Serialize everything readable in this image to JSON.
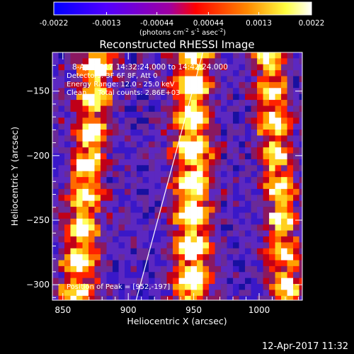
{
  "colorbar": {
    "ticks": [
      "-0.0022",
      "-0.0013",
      "-0.00044",
      "0.00044",
      "0.0013",
      "0.0022"
    ],
    "tick_values": [
      -0.0022,
      -0.0013,
      -0.00044,
      0.00044,
      0.0013,
      0.0022
    ],
    "range": [
      -0.0022,
      0.0022
    ],
    "units_prefix": "(photons cm",
    "units_sup1": "-2",
    "units_mid": " s",
    "units_sup2": "-1",
    "units_mid2": " asec",
    "units_sup3": "-2",
    "units_suffix": ")",
    "colors": [
      "#0000ff",
      "#6a00ff",
      "#ff0000",
      "#ff8800",
      "#ffff40",
      "#ffffff"
    ]
  },
  "chart_data": {
    "type": "heatmap",
    "title": "Reconstructed RHESSI Image",
    "xlabel": "Heliocentric X (arcsec)",
    "ylabel": "Heliocentric Y (arcsec)",
    "xlim": [
      842,
      1033
    ],
    "ylim": [
      -312,
      -120
    ],
    "x_ticks": [
      850,
      900,
      950,
      1000
    ],
    "y_ticks": [
      -150,
      -200,
      -250,
      -300
    ],
    "x_tick_labels": [
      "850",
      "900",
      "950",
      "1000"
    ],
    "y_tick_labels": [
      "−150",
      "−200",
      "−250",
      "−300"
    ],
    "annotations": [
      "8-Apr-2017 14:32:24.000 to 14:42:24.000",
      "Detectors: 3F 6F 8F, Att 0",
      "Energy Range: 12.0 - 25.0 keV",
      "Clean     Total counts: 2.86E+03"
    ],
    "peak_label": "Position of Peak = [952,-197]",
    "peak": [
      952,
      -197
    ],
    "limb_line": [
      [
        906,
        -312
      ],
      [
        957,
        -120
      ]
    ],
    "ridges": [
      {
        "x0": 870,
        "slope_per_arcsec": 0.09,
        "width": 13,
        "amp": 0.85
      },
      {
        "x0": 949,
        "slope_per_arcsec": 0.0,
        "width": 14,
        "amp": 1.0
      },
      {
        "x0": 1013,
        "slope_per_arcsec": -0.08,
        "width": 12,
        "amp": 0.8
      }
    ],
    "grid": false
  },
  "footer": {
    "date": "12-Apr-2017 11:32"
  }
}
